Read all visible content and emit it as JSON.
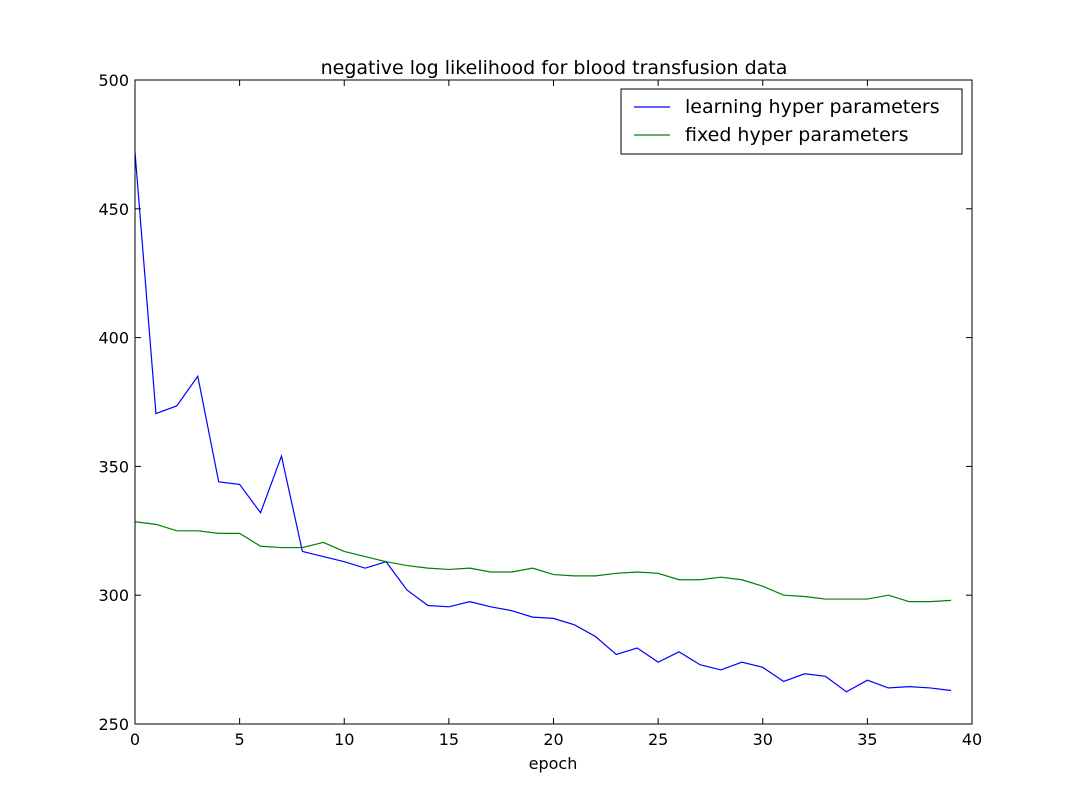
{
  "chart_data": {
    "type": "line",
    "title": "negative log likelihood for blood transfusion data",
    "xlabel": "epoch",
    "ylabel": "",
    "xlim": [
      0,
      40
    ],
    "ylim": [
      250,
      500
    ],
    "xticks": [
      0,
      5,
      10,
      15,
      20,
      25,
      30,
      35,
      40
    ],
    "yticks": [
      250,
      300,
      350,
      400,
      450,
      500
    ],
    "grid": false,
    "legend_position": "top-right",
    "x": [
      0,
      1,
      2,
      3,
      4,
      5,
      6,
      7,
      8,
      9,
      10,
      11,
      12,
      13,
      14,
      15,
      16,
      17,
      18,
      19,
      20,
      21,
      22,
      23,
      24,
      25,
      26,
      27,
      28,
      29,
      30,
      31,
      32,
      33,
      34,
      35,
      36,
      37,
      38,
      39
    ],
    "series": [
      {
        "name": "learning hyper parameters",
        "color": "#0000ff",
        "values": [
          472,
          370.5,
          373.5,
          385,
          344,
          343,
          332,
          354,
          317,
          315,
          313,
          310.5,
          313,
          302,
          296,
          295.5,
          297.5,
          295.5,
          294,
          291.5,
          291,
          288.5,
          284,
          277,
          279.5,
          274,
          278,
          273,
          271,
          274,
          272,
          266.5,
          269.5,
          268.5,
          262.5,
          267,
          264,
          264.5,
          264,
          263
        ]
      },
      {
        "name": "fixed hyper parameters",
        "color": "#008000",
        "values": [
          328.5,
          327.5,
          325,
          325,
          324,
          324,
          319,
          318.5,
          318.5,
          320.5,
          317,
          315,
          313,
          311.5,
          310.5,
          310,
          310.5,
          309,
          309,
          310.5,
          308,
          307.5,
          307.5,
          308.5,
          309,
          308.5,
          306,
          306,
          307,
          306,
          303.5,
          300,
          299.5,
          298.5,
          298.5,
          298.5,
          300,
          297.5,
          297.5,
          298
        ]
      }
    ]
  }
}
